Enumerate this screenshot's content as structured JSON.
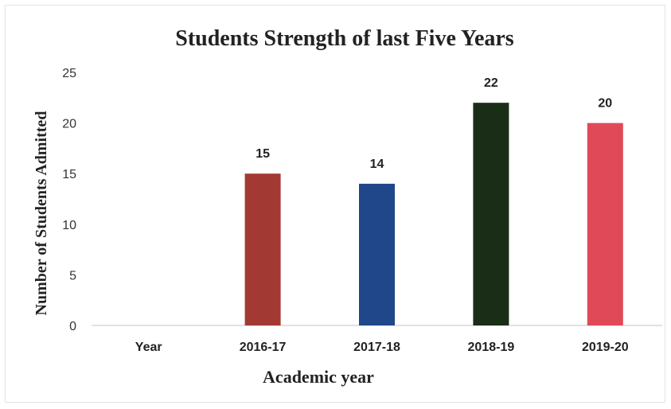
{
  "chart_data": {
    "type": "bar",
    "title": "Students Strength of last Five Years",
    "xlabel": "Academic year",
    "ylabel": "Number of Students Admitted",
    "categories": [
      "Year",
      "2016-17",
      "2017-18",
      "2018-19",
      "2019-20"
    ],
    "values": [
      null,
      15,
      14,
      22,
      20
    ],
    "data_labels": [
      "",
      "15",
      "14",
      "22",
      "20"
    ],
    "colors": [
      "#ffffff",
      "#a23a33",
      "#20478a",
      "#1a2e17",
      "#e04a58"
    ],
    "ylim": [
      0,
      25
    ],
    "yticks": [
      "0",
      "5",
      "10",
      "15",
      "20",
      "25"
    ],
    "grid": false,
    "legend": "none"
  }
}
